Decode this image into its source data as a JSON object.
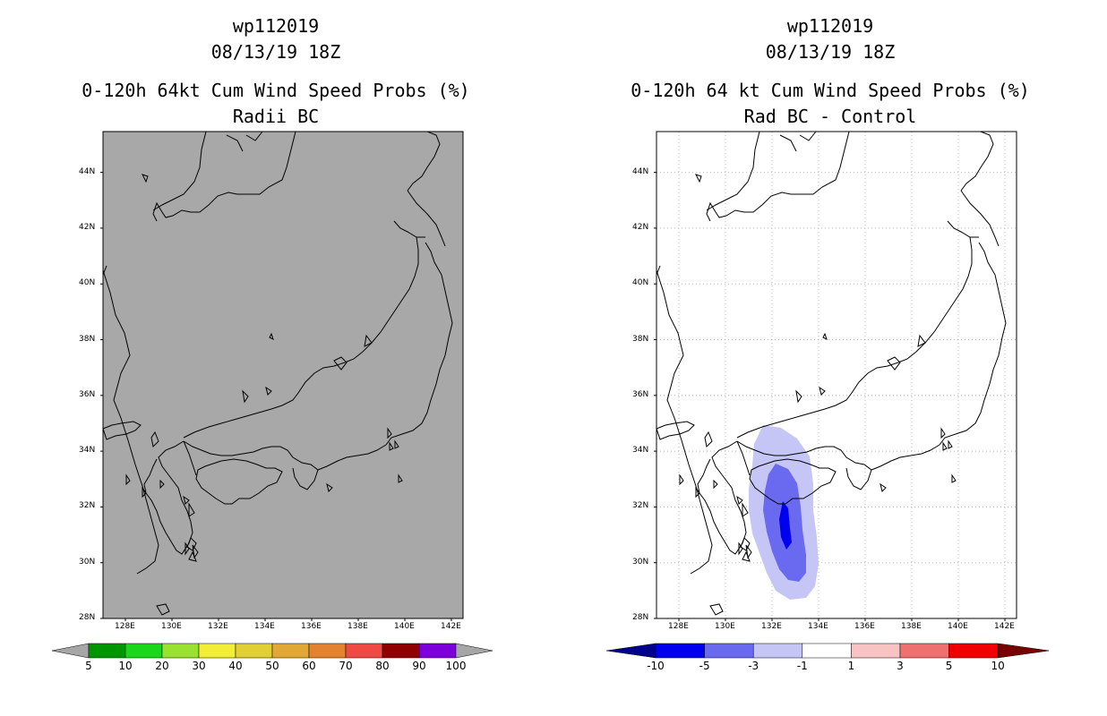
{
  "left_panel": {
    "line1": "wp112019",
    "line2": "08/13/19 18Z",
    "line3": "0-120h 64kt Cum Wind Speed Probs (%)",
    "line4": "Radii BC",
    "map_fill": "#a8a8a8",
    "lat_labels": [
      "28N",
      "30N",
      "32N",
      "34N",
      "36N",
      "38N",
      "40N",
      "42N",
      "44N"
    ],
    "lon_labels": [
      "128E",
      "130E",
      "132E",
      "134E",
      "136E",
      "138E",
      "140E",
      "142E"
    ],
    "colorbar": {
      "labels": [
        "5",
        "10",
        "20",
        "30",
        "40",
        "50",
        "60",
        "70",
        "80",
        "90",
        "100"
      ],
      "colors": [
        "#009600",
        "#19d719",
        "#99e22f",
        "#f2ee36",
        "#e2cf33",
        "#e1a834",
        "#e4832e",
        "#f04a45",
        "#900000",
        "#7d00dc"
      ],
      "end_color": "#a6a6a6"
    }
  },
  "right_panel": {
    "line1": "wp112019",
    "line2": "08/13/19 18Z",
    "line3": "0-120h 64 kt Cum Wind Speed Probs (%)",
    "line4": "Rad BC - Control",
    "lat_labels": [
      "28N",
      "30N",
      "32N",
      "34N",
      "36N",
      "38N",
      "40N",
      "42N",
      "44N"
    ],
    "lon_labels": [
      "128E",
      "130E",
      "132E",
      "134E",
      "136E",
      "138E",
      "140E",
      "142E"
    ],
    "colorbar": {
      "labels": [
        "-10",
        "-5",
        "-3",
        "-1",
        "1",
        "3",
        "5",
        "10"
      ],
      "colors": [
        "#0000f0",
        "#6a6af0",
        "#c6c6f6",
        "#ffffff",
        "#f9c3c3",
        "#f06f6f",
        "#f00000"
      ],
      "low_end_color": "#00008c",
      "high_end_color": "#780000"
    },
    "difference_shading": {
      "light_blue": "#c6c6f6",
      "medium_blue": "#6a6af0",
      "dark_blue": "#0000f0"
    }
  }
}
